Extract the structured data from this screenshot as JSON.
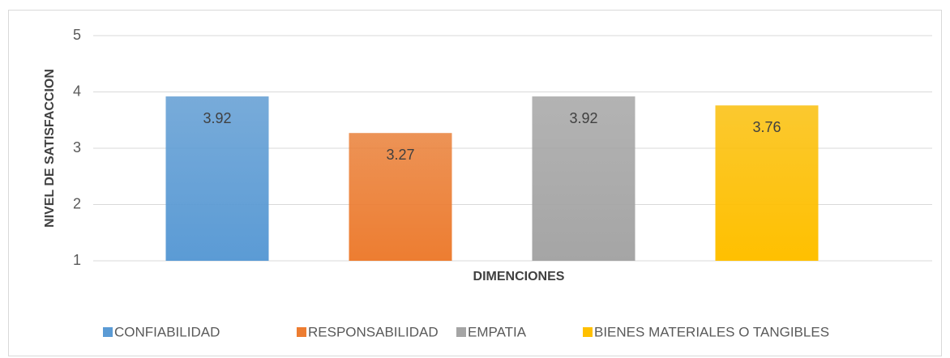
{
  "chart_data": {
    "type": "bar",
    "xlabel": "DIMENCIONES",
    "ylabel": "NIVEL DE SATISFACCION",
    "categories": [
      null
    ],
    "series": [
      {
        "name": "CONFIABILIDAD",
        "color": "#5b9bd5",
        "values": [
          3.92
        ]
      },
      {
        "name": "RESPONSABILIDAD",
        "color": "#ed7d31",
        "values": [
          3.27
        ]
      },
      {
        "name": "EMPATIA",
        "color": "#a5a5a5",
        "values": [
          3.92
        ]
      },
      {
        "name": "BIENES MATERIALES O TANGIBLES",
        "color": "#ffc000",
        "values": [
          3.76
        ]
      }
    ],
    "ylim": [
      1,
      5
    ],
    "yticks": [
      1,
      2,
      3,
      4,
      5
    ],
    "grid": true,
    "legend": "bottom"
  }
}
